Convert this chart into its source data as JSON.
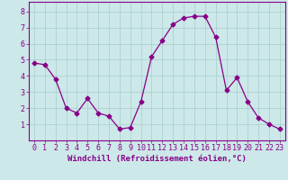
{
  "x": [
    0,
    1,
    2,
    3,
    4,
    5,
    6,
    7,
    8,
    9,
    10,
    11,
    12,
    13,
    14,
    15,
    16,
    17,
    18,
    19,
    20,
    21,
    22,
    23
  ],
  "y": [
    4.8,
    4.7,
    3.8,
    2.0,
    1.7,
    2.6,
    1.7,
    1.5,
    0.7,
    0.8,
    2.4,
    5.2,
    6.2,
    7.2,
    7.6,
    7.7,
    7.7,
    6.4,
    3.1,
    3.9,
    2.4,
    1.4,
    1.0,
    0.7
  ],
  "line_color": "#880088",
  "marker": "D",
  "marker_size": 2.5,
  "bg_color": "#cce8e8",
  "grid_color": "#aacccc",
  "xlabel": "Windchill (Refroidissement éolien,°C)",
  "xlim": [
    -0.5,
    23.5
  ],
  "ylim": [
    0,
    8.6
  ],
  "yticks": [
    1,
    2,
    3,
    4,
    5,
    6,
    7,
    8
  ],
  "xticks": [
    0,
    1,
    2,
    3,
    4,
    5,
    6,
    7,
    8,
    9,
    10,
    11,
    12,
    13,
    14,
    15,
    16,
    17,
    18,
    19,
    20,
    21,
    22,
    23
  ],
  "tick_color": "#880088",
  "label_color": "#880088",
  "axis_label_fontsize": 6.5,
  "tick_fontsize": 6.0
}
